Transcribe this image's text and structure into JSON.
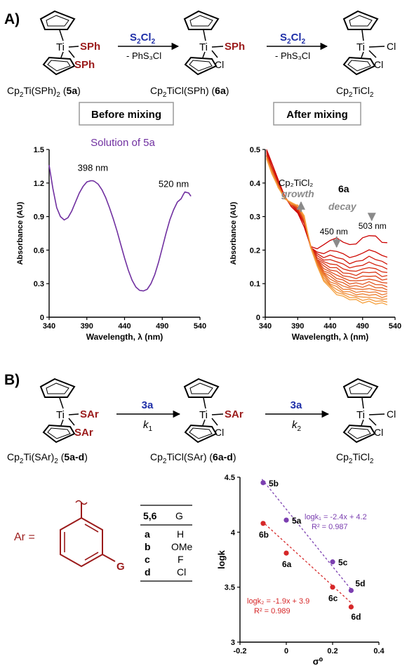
{
  "panel_a": {
    "letter": "A)",
    "ti": "Ti",
    "sph": "SPh",
    "cl": "Cl",
    "reagent_main": "S",
    "reagent_sub1": "2",
    "reagent_mid": "Cl",
    "reagent_sub2": "2",
    "byproduct": "- PhS₃Cl",
    "label_5a": [
      "Cp",
      "2",
      "Ti(SPh)",
      "2",
      " (",
      "5a",
      ")"
    ],
    "label_6a": [
      "Cp",
      "2",
      "TiCl(SPh) (",
      "6a",
      ")"
    ],
    "label_cp2ticl2": [
      "Cp",
      "2",
      "TiCl",
      "2"
    ],
    "before_box": "Before mixing",
    "after_box": "After mixing"
  },
  "panel_b": {
    "letter": "B)",
    "sar": "SAr",
    "reagent": "3a",
    "k1": [
      "k",
      "1"
    ],
    "k2": [
      "k",
      "2"
    ],
    "label_5": [
      "Cp",
      "2",
      "Ti(SAr)",
      "2",
      " (",
      "5a-d",
      ")"
    ],
    "label_6": [
      "Cp",
      "2",
      "TiCl(SAr) (",
      "6a-d",
      ")"
    ],
    "ar_label": "Ar =",
    "g_label": "G",
    "table": {
      "headers": [
        "5,6",
        "G"
      ],
      "rows": [
        [
          "a",
          "H"
        ],
        [
          "b",
          "OMe"
        ],
        [
          "c",
          "F"
        ],
        [
          "d",
          "Cl"
        ]
      ]
    }
  },
  "colors": {
    "purple": "#7030A0",
    "red": "#9B1B1B",
    "blue": "#1F2FA8",
    "gray": "#8a8a8a",
    "fit_purple": "#7B3FB0",
    "fit_red": "#D62728"
  },
  "chart_data": [
    {
      "type": "line",
      "title": "Solution of 5a",
      "xlabel": "Wavelength, λ (nm)",
      "ylabel": "Absorbance (AU)",
      "xlim": [
        340,
        540
      ],
      "ylim": [
        0,
        1.5
      ],
      "xticks": [
        340,
        390,
        440,
        490,
        540
      ],
      "yticks": [
        0,
        0.3,
        0.6,
        0.9,
        1.2,
        1.5
      ],
      "annotations": [
        {
          "text": "398 nm",
          "x": 398,
          "y": 1.22
        },
        {
          "text": "520 nm",
          "x": 520,
          "y": 1.1
        }
      ],
      "series": [
        {
          "x": [
            340,
            345,
            350,
            355,
            360,
            365,
            370,
            375,
            380,
            385,
            390,
            395,
            398,
            400,
            405,
            410,
            415,
            420,
            425,
            430,
            435,
            440,
            445,
            450,
            455,
            460,
            465,
            470,
            475,
            480,
            485,
            490,
            495,
            500,
            505,
            510,
            515,
            518,
            520,
            525,
            528
          ],
          "y": [
            1.36,
            1.15,
            0.98,
            0.9,
            0.87,
            0.89,
            0.95,
            1.03,
            1.11,
            1.17,
            1.21,
            1.22,
            1.22,
            1.215,
            1.19,
            1.14,
            1.07,
            0.98,
            0.88,
            0.77,
            0.65,
            0.53,
            0.42,
            0.33,
            0.27,
            0.24,
            0.235,
            0.25,
            0.3,
            0.38,
            0.49,
            0.62,
            0.75,
            0.87,
            0.96,
            1.03,
            1.07,
            1.1,
            1.11,
            1.1,
            1.08
          ]
        }
      ]
    },
    {
      "type": "line",
      "xlabel": "Wavelength, λ (nm)",
      "ylabel": "Absorbance (AU)",
      "xlim": [
        340,
        540
      ],
      "ylim": [
        0,
        0.5
      ],
      "xticks": [
        340,
        390,
        440,
        490,
        540
      ],
      "yticks": [
        0,
        0.1,
        0.2,
        0.3,
        0.4,
        0.5
      ],
      "annotations": [
        {
          "text": "Cp₂TiCl₂",
          "style": "label"
        },
        {
          "text": "growth",
          "style": "arrow-up"
        },
        {
          "text": "6a",
          "style": "label"
        },
        {
          "text": "decay",
          "style": "label"
        },
        {
          "text": "450 nm",
          "x": 450
        },
        {
          "text": "503 nm",
          "x": 503
        }
      ],
      "series_count": 16,
      "series_first": {
        "x": [
          342,
          350,
          360,
          370,
          380,
          390,
          400,
          410,
          420,
          430,
          440,
          450,
          460,
          470,
          480,
          490,
          500,
          510,
          520,
          528
        ],
        "y": [
          0.5,
          0.46,
          0.41,
          0.36,
          0.33,
          0.31,
          0.27,
          0.21,
          0.205,
          0.215,
          0.23,
          0.235,
          0.225,
          0.215,
          0.22,
          0.235,
          0.245,
          0.24,
          0.225,
          0.22
        ]
      },
      "series_last": {
        "x": [
          342,
          350,
          360,
          370,
          380,
          390,
          400,
          410,
          420,
          430,
          440,
          450,
          460,
          470,
          480,
          490,
          500,
          510,
          520,
          528
        ],
        "y": [
          0.47,
          0.43,
          0.385,
          0.355,
          0.34,
          0.335,
          0.3,
          0.21,
          0.15,
          0.11,
          0.085,
          0.07,
          0.06,
          0.055,
          0.05,
          0.045,
          0.045,
          0.042,
          0.04,
          0.04
        ]
      }
    },
    {
      "type": "scatter",
      "xlabel": "σ⁰",
      "ylabel": "logk",
      "xlim": [
        -0.2,
        0.4
      ],
      "ylim": [
        3,
        4.5
      ],
      "xticks": [
        -0.2,
        0,
        0.2,
        0.4
      ],
      "yticks": [
        3,
        3.5,
        4,
        4.5
      ],
      "series": [
        {
          "name": "logk₁ = -2.4x + 4.2",
          "r2": "R² = 0.987",
          "points": [
            {
              "label": "5b",
              "x": -0.1,
              "y": 4.45
            },
            {
              "label": "5a",
              "x": 0.0,
              "y": 4.11
            },
            {
              "label": "5c",
              "x": 0.2,
              "y": 3.73
            },
            {
              "label": "5d",
              "x": 0.28,
              "y": 3.47
            }
          ]
        },
        {
          "name": "logk₂ = -1.9x + 3.9",
          "r2": "R² = 0.989",
          "points": [
            {
              "label": "6b",
              "x": -0.1,
              "y": 4.08
            },
            {
              "label": "6a",
              "x": 0.0,
              "y": 3.81
            },
            {
              "label": "6c",
              "x": 0.2,
              "y": 3.5
            },
            {
              "label": "6d",
              "x": 0.28,
              "y": 3.32
            }
          ]
        }
      ]
    }
  ]
}
